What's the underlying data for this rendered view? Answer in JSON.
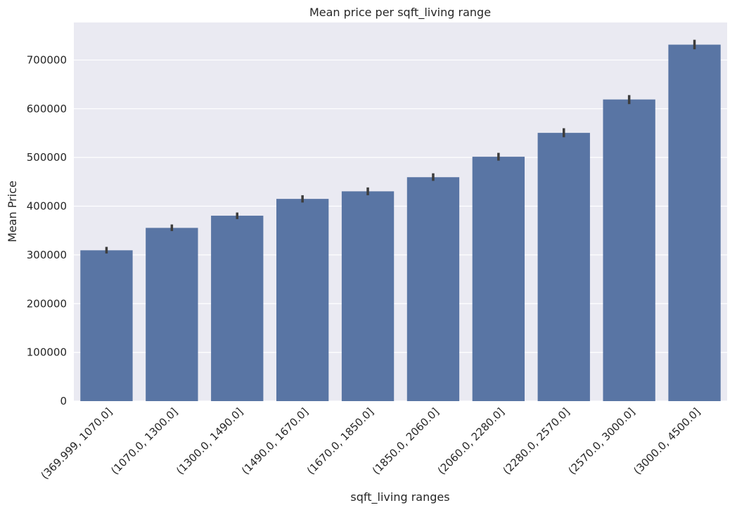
{
  "chart_data": {
    "type": "bar",
    "title": "Mean price per sqft_living range",
    "xlabel": "sqft_living ranges",
    "ylabel": "Mean Price",
    "categories": [
      "(369.999, 1070.0]",
      "(1070.0, 1300.0]",
      "(1300.0, 1490.0]",
      "(1490.0, 1670.0]",
      "(1670.0, 1850.0]",
      "(1850.0, 2060.0]",
      "(2060.0, 2280.0]",
      "(2280.0, 2570.0]",
      "(2570.0, 3000.0]",
      "(3000.0, 4500.0]"
    ],
    "values": [
      309500,
      355500,
      380500,
      415000,
      430500,
      459500,
      501500,
      550500,
      619000,
      731500
    ],
    "error_bars": [
      [
        303000,
        316500
      ],
      [
        349000,
        362500
      ],
      [
        373500,
        387000
      ],
      [
        407500,
        422500
      ],
      [
        422500,
        438500
      ],
      [
        452000,
        467500
      ],
      [
        493500,
        509500
      ],
      [
        541500,
        560000
      ],
      [
        609500,
        628000
      ],
      [
        722000,
        741500
      ]
    ],
    "ylim": [
      0,
      777000
    ],
    "yticks": [
      0,
      100000,
      200000,
      300000,
      400000,
      500000,
      600000,
      700000
    ],
    "ytick_labels": [
      "0",
      "100000",
      "200000",
      "300000",
      "400000",
      "500000",
      "600000",
      "700000"
    ],
    "grid": true,
    "colors": {
      "bar": "#5975a4",
      "background": "#eaeaf2",
      "grid": "#ffffff",
      "error_bar": "#3d3d3d"
    }
  }
}
